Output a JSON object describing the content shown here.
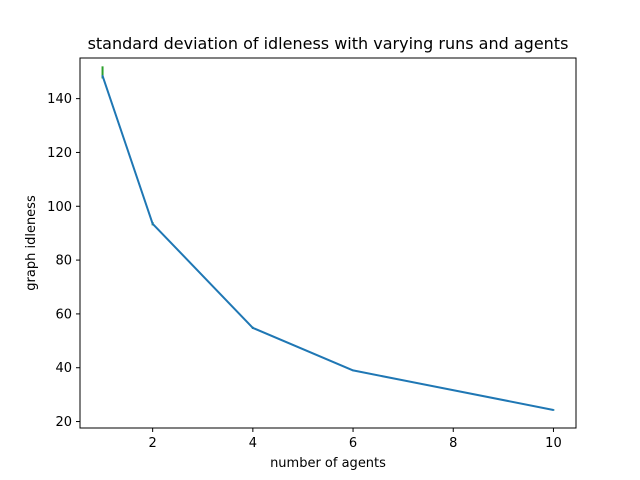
{
  "chart_data": {
    "type": "line",
    "title": "standard deviation of idleness with varying runs and agents",
    "xlabel": "number of agents",
    "ylabel": "graph idleness",
    "xlim": [
      0.55,
      10.45
    ],
    "ylim": [
      17.6,
      155.1
    ],
    "xticks": [
      2,
      4,
      6,
      8,
      10
    ],
    "yticks": [
      20,
      40,
      60,
      80,
      100,
      120,
      140
    ],
    "grid": false,
    "series": [
      {
        "color": "#1f77b4",
        "x": [
          1,
          2,
          4,
          6,
          10
        ],
        "y": [
          148.5,
          93.5,
          54.8,
          39.0,
          24.3
        ]
      }
    ],
    "error_bars": {
      "color": "#2ca02c",
      "x": [
        1,
        2,
        4,
        6,
        10
      ],
      "low": [
        147.5,
        92.9,
        54.4,
        38.8,
        24.1
      ],
      "high": [
        152.0,
        94.1,
        55.2,
        39.2,
        24.5
      ]
    }
  }
}
